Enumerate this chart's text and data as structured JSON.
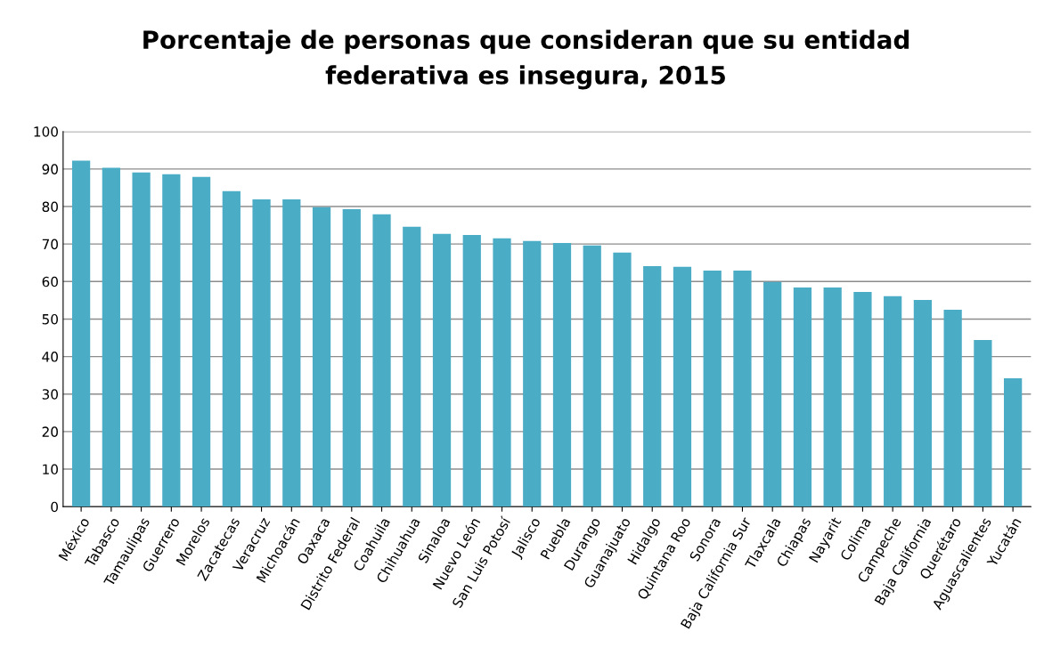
{
  "chart_data": {
    "type": "bar",
    "title": "Porcentaje de personas que consideran que su entidad\nfederativa es insegura, 2015",
    "categories": [
      "México",
      "Tabasco",
      "Tamaulipas",
      "Guerrero",
      "Morelos",
      "Zacatecas",
      "Veracruz",
      "Michoacán",
      "Oaxaca",
      "Distrito Federal",
      "Coahuila",
      "Chihuahua",
      "Sinaloa",
      "Nuevo León",
      "San Luis Potosí",
      "Jalisco",
      "Puebla",
      "Durango",
      "Guanajuato",
      "Hidalgo",
      "Quintana Roo",
      "Sonora",
      "Baja California Sur",
      "Tlaxcala",
      "Chiapas",
      "Nayarit",
      "Colima",
      "Campeche",
      "Baja California",
      "Querétaro",
      "Aguascalientes",
      "Yucatán"
    ],
    "values": [
      92.2,
      90.3,
      89.1,
      88.6,
      87.9,
      84.1,
      81.9,
      81.9,
      79.8,
      79.3,
      77.9,
      74.6,
      72.7,
      72.4,
      71.5,
      70.8,
      70.3,
      69.6,
      67.7,
      64.1,
      63.9,
      62.9,
      62.9,
      59.9,
      58.4,
      58.4,
      57.2,
      56.1,
      55.1,
      52.5,
      44.4,
      34.2
    ],
    "color": "#4bacc6",
    "ylim": [
      0,
      100
    ],
    "yticks": [
      0,
      10,
      20,
      30,
      40,
      50,
      60,
      70,
      80,
      90,
      100
    ],
    "grid": "y"
  }
}
